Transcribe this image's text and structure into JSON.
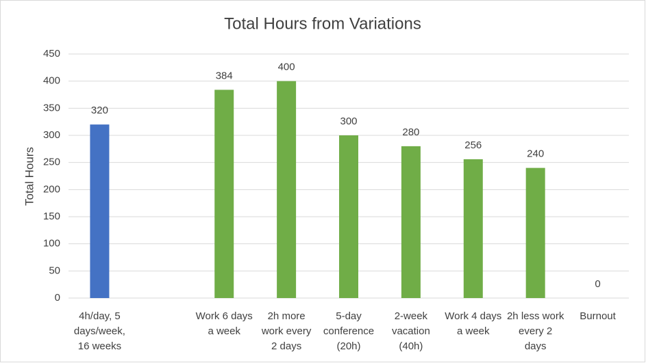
{
  "chart_data": {
    "type": "bar",
    "title": "Total Hours from Variations",
    "y_label": "Total Hours",
    "categories": [
      "4h/day, 5 days/week, 16 weeks",
      null,
      "Work 6 days a week",
      "2h more work every 2 days",
      "5-day conference (20h)",
      "2-week vacation (40h)",
      "Work 4 days a week",
      "2h less work every 2 days",
      "Burnout"
    ],
    "values": [
      320,
      null,
      384,
      400,
      300,
      280,
      256,
      240,
      0
    ],
    "colors": [
      "#4472c4",
      null,
      "#70ad47",
      "#70ad47",
      "#70ad47",
      "#70ad47",
      "#70ad47",
      "#70ad47",
      "#70ad47"
    ],
    "ylim": [
      0,
      450
    ],
    "yticks": [
      0,
      50,
      100,
      150,
      200,
      250,
      300,
      350,
      400,
      450
    ],
    "grid": true
  }
}
